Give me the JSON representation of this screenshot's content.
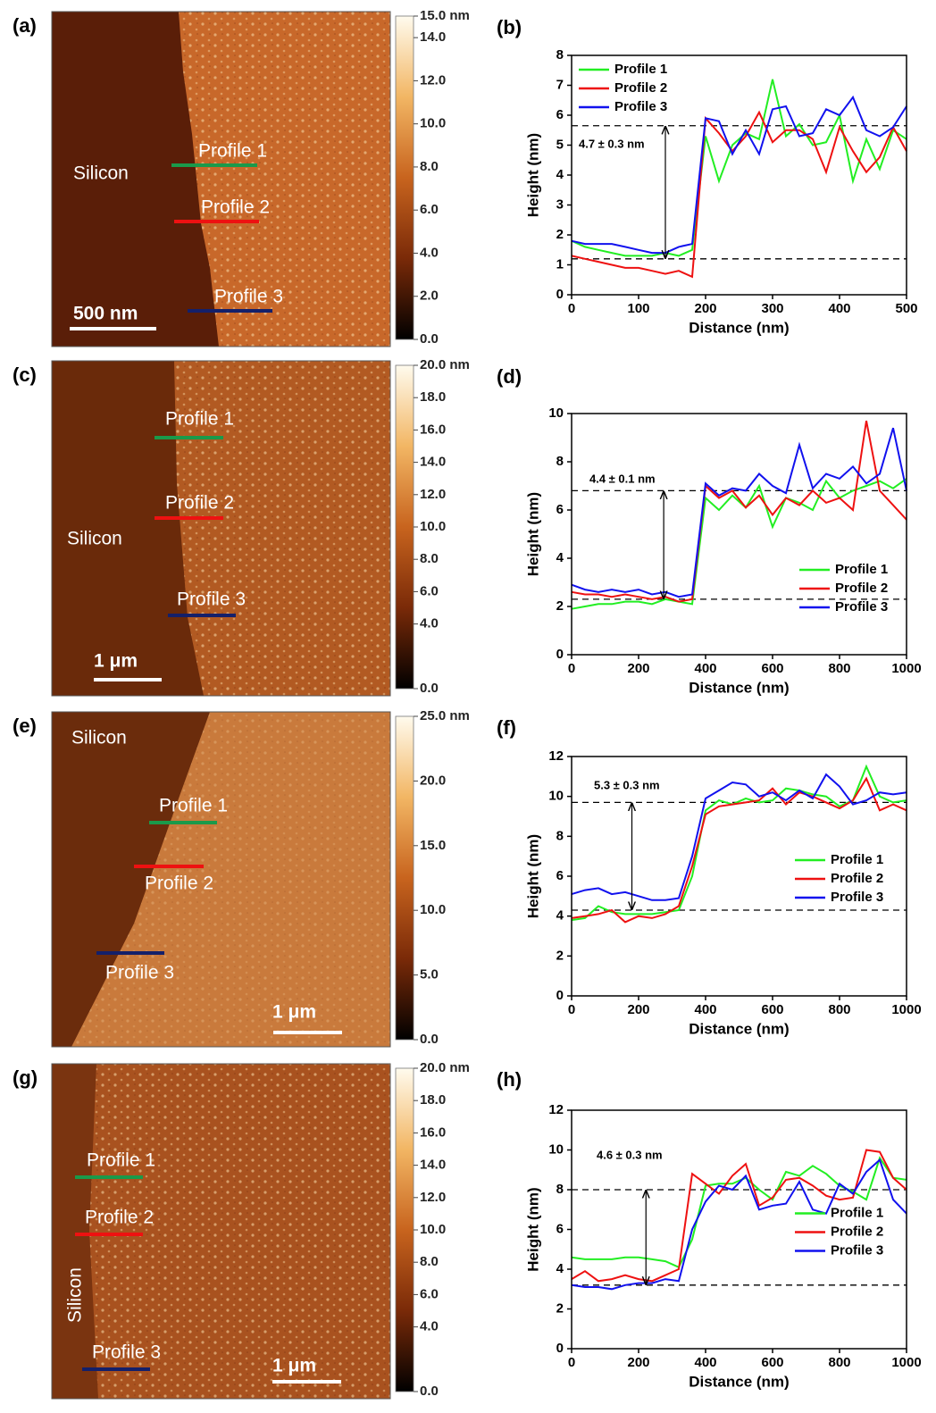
{
  "images": [
    {
      "label": "(a)",
      "silicon": "Silicon",
      "profiles": [
        "Profile 1",
        "Profile 2",
        "Profile 3"
      ],
      "scale_bar": "500 nm",
      "colorbar_lim": [
        0,
        15
      ],
      "colorbar_ticks": [
        {
          "value": 15,
          "label": "15.0 nm"
        },
        {
          "value": 14,
          "label": "14.0"
        },
        {
          "value": 12,
          "label": "12.0"
        },
        {
          "value": 10,
          "label": "10.0"
        },
        {
          "value": 8,
          "label": "8.0"
        },
        {
          "value": 6,
          "label": "6.0"
        },
        {
          "value": 4,
          "label": "4.0"
        },
        {
          "value": 2,
          "label": "2.0"
        },
        {
          "value": 0,
          "label": "0.0"
        }
      ]
    },
    {
      "label": "(c)",
      "silicon": "Silicon",
      "profiles": [
        "Profile 1",
        "Profile 2",
        "Profile 3"
      ],
      "scale_bar": "1 μm",
      "colorbar_lim": [
        0,
        20
      ],
      "colorbar_ticks": [
        {
          "value": 20,
          "label": "20.0 nm"
        },
        {
          "value": 18,
          "label": "18.0"
        },
        {
          "value": 16,
          "label": "16.0"
        },
        {
          "value": 14,
          "label": "14.0"
        },
        {
          "value": 12,
          "label": "12.0"
        },
        {
          "value": 10,
          "label": "10.0"
        },
        {
          "value": 8,
          "label": "8.0"
        },
        {
          "value": 6,
          "label": "6.0"
        },
        {
          "value": 4,
          "label": "4.0"
        },
        {
          "value": 0,
          "label": "0.0"
        }
      ]
    },
    {
      "label": "(e)",
      "silicon": "Silicon",
      "profiles": [
        "Profile 1",
        "Profile 2",
        "Profile 3"
      ],
      "scale_bar": "1 μm",
      "colorbar_lim": [
        0,
        25
      ],
      "colorbar_ticks": [
        {
          "value": 25,
          "label": "25.0 nm"
        },
        {
          "value": 20,
          "label": "20.0"
        },
        {
          "value": 15,
          "label": "15.0"
        },
        {
          "value": 10,
          "label": "10.0"
        },
        {
          "value": 5,
          "label": "5.0"
        },
        {
          "value": 0,
          "label": "0.0"
        }
      ]
    },
    {
      "label": "(g)",
      "silicon": "Silicon",
      "profiles": [
        "Profile 1",
        "Profile 2",
        "Profile 3"
      ],
      "scale_bar": "1 μm",
      "colorbar_lim": [
        0,
        20
      ],
      "colorbar_ticks": [
        {
          "value": 20,
          "label": "20.0 nm"
        },
        {
          "value": 18,
          "label": "18.0"
        },
        {
          "value": 16,
          "label": "16.0"
        },
        {
          "value": 14,
          "label": "14.0"
        },
        {
          "value": 12,
          "label": "12.0"
        },
        {
          "value": 10,
          "label": "10.0"
        },
        {
          "value": 8,
          "label": "8.0"
        },
        {
          "value": 6,
          "label": "6.0"
        },
        {
          "value": 4,
          "label": "4.0"
        },
        {
          "value": 0,
          "label": "0.0"
        }
      ]
    }
  ],
  "chart_data": [
    {
      "type": "line",
      "label": "(b)",
      "xlabel": "Distance (nm)",
      "ylabel": "Height (nm)",
      "annotation": "4.7 ± 0.3 nm",
      "xlim": [
        0,
        500
      ],
      "ylim": [
        0,
        8
      ],
      "xticks": [
        0,
        100,
        200,
        300,
        400,
        500
      ],
      "yticks": [
        0,
        1,
        2,
        3,
        4,
        5,
        6,
        7,
        8
      ],
      "reference_lines": [
        5.65,
        1.2
      ],
      "legend": "upper left",
      "x": [
        0,
        20,
        40,
        60,
        80,
        100,
        120,
        140,
        160,
        180,
        200,
        220,
        240,
        260,
        280,
        300,
        320,
        340,
        360,
        380,
        400,
        420,
        440,
        460,
        480,
        500
      ],
      "series": [
        {
          "name": "Profile 1",
          "color": "#22ee22",
          "values": [
            1.8,
            1.6,
            1.5,
            1.4,
            1.3,
            1.3,
            1.3,
            1.4,
            1.3,
            1.5,
            5.3,
            3.8,
            5.0,
            5.4,
            5.2,
            7.2,
            5.3,
            5.7,
            5.0,
            5.1,
            6.0,
            3.8,
            5.2,
            4.2,
            5.5,
            5.2
          ]
        },
        {
          "name": "Profile 2",
          "color": "#ee1111",
          "values": [
            1.3,
            1.2,
            1.1,
            1.0,
            0.9,
            0.9,
            0.8,
            0.7,
            0.8,
            0.6,
            5.9,
            5.4,
            4.8,
            5.3,
            6.1,
            5.1,
            5.5,
            5.5,
            5.2,
            4.1,
            5.6,
            4.8,
            4.1,
            4.6,
            5.6,
            4.8
          ]
        },
        {
          "name": "Profile 3",
          "color": "#1111ee",
          "values": [
            1.8,
            1.7,
            1.7,
            1.7,
            1.6,
            1.5,
            1.4,
            1.4,
            1.6,
            1.7,
            5.9,
            5.8,
            4.7,
            5.5,
            4.7,
            6.2,
            6.3,
            5.3,
            5.4,
            6.2,
            6.0,
            6.6,
            5.5,
            5.3,
            5.6,
            6.3
          ]
        }
      ]
    },
    {
      "type": "line",
      "label": "(d)",
      "xlabel": "Distance (nm)",
      "ylabel": "Height (nm)",
      "annotation": "4.4 ± 0.1 nm",
      "xlim": [
        0,
        1000
      ],
      "ylim": [
        0,
        10
      ],
      "xticks": [
        0,
        200,
        400,
        600,
        800,
        1000
      ],
      "yticks": [
        0,
        2,
        4,
        6,
        8,
        10
      ],
      "reference_lines": [
        6.8,
        2.3
      ],
      "legend": "lower right",
      "x": [
        0,
        40,
        80,
        120,
        160,
        200,
        240,
        280,
        320,
        360,
        400,
        440,
        480,
        520,
        560,
        600,
        640,
        680,
        720,
        760,
        800,
        840,
        880,
        920,
        960,
        1000
      ],
      "series": [
        {
          "name": "Profile 1",
          "color": "#22ee22",
          "values": [
            1.9,
            2.0,
            2.1,
            2.1,
            2.2,
            2.2,
            2.1,
            2.3,
            2.2,
            2.1,
            6.5,
            6.0,
            6.6,
            6.1,
            7.0,
            5.3,
            6.5,
            6.3,
            6.0,
            7.2,
            6.5,
            6.8,
            7.0,
            7.2,
            6.9,
            7.3
          ]
        },
        {
          "name": "Profile 2",
          "color": "#ee1111",
          "values": [
            2.6,
            2.5,
            2.5,
            2.4,
            2.5,
            2.4,
            2.3,
            2.4,
            2.2,
            2.3,
            7.0,
            6.5,
            6.8,
            6.1,
            6.6,
            5.8,
            6.5,
            6.2,
            6.8,
            6.3,
            6.5,
            6.0,
            9.7,
            6.8,
            6.2,
            5.6
          ]
        },
        {
          "name": "Profile 3",
          "color": "#1111ee",
          "values": [
            2.9,
            2.7,
            2.6,
            2.7,
            2.6,
            2.7,
            2.5,
            2.6,
            2.4,
            2.5,
            7.1,
            6.6,
            6.9,
            6.8,
            7.5,
            7.0,
            6.7,
            8.7,
            6.9,
            7.5,
            7.3,
            7.8,
            7.1,
            7.5,
            9.4,
            6.8
          ]
        }
      ]
    },
    {
      "type": "line",
      "label": "(f)",
      "xlabel": "Distance (nm)",
      "ylabel": "Height (nm)",
      "annotation": "5.3 ± 0.3 nm",
      "xlim": [
        0,
        1000
      ],
      "ylim": [
        0,
        12
      ],
      "xticks": [
        0,
        200,
        400,
        600,
        800,
        1000
      ],
      "yticks": [
        0,
        2,
        4,
        6,
        8,
        10,
        12
      ],
      "reference_lines": [
        9.7,
        4.3
      ],
      "legend": "center right",
      "x": [
        0,
        40,
        80,
        120,
        160,
        200,
        240,
        280,
        320,
        360,
        400,
        440,
        480,
        520,
        560,
        600,
        640,
        680,
        720,
        760,
        800,
        840,
        880,
        920,
        960,
        1000
      ],
      "series": [
        {
          "name": "Profile 1",
          "color": "#22ee22",
          "values": [
            3.8,
            3.9,
            4.5,
            4.2,
            4.1,
            4.1,
            4.1,
            4.2,
            4.3,
            6.0,
            9.3,
            9.8,
            9.6,
            9.9,
            9.7,
            9.8,
            10.4,
            10.3,
            10.1,
            10.0,
            9.5,
            9.8,
            11.5,
            10.0,
            9.7,
            9.8
          ]
        },
        {
          "name": "Profile 2",
          "color": "#ee1111",
          "values": [
            3.9,
            4.0,
            4.1,
            4.3,
            3.7,
            4.0,
            3.9,
            4.1,
            4.5,
            6.5,
            9.1,
            9.5,
            9.6,
            9.7,
            9.8,
            10.4,
            9.6,
            10.2,
            10.0,
            9.7,
            9.4,
            9.8,
            10.9,
            9.3,
            9.6,
            9.3
          ]
        },
        {
          "name": "Profile 3",
          "color": "#1111ee",
          "values": [
            5.1,
            5.3,
            5.4,
            5.1,
            5.2,
            5.0,
            4.8,
            4.8,
            4.9,
            7.0,
            9.9,
            10.3,
            10.7,
            10.6,
            10.0,
            10.2,
            9.8,
            10.3,
            9.9,
            11.1,
            10.5,
            9.6,
            9.8,
            10.2,
            10.1,
            10.2
          ]
        }
      ]
    },
    {
      "type": "line",
      "label": "(h)",
      "xlabel": "Distance (nm)",
      "ylabel": "Height (nm)",
      "annotation": "4.6 ± 0.3 nm",
      "xlim": [
        0,
        1000
      ],
      "ylim": [
        0,
        12
      ],
      "xticks": [
        0,
        200,
        400,
        600,
        800,
        1000
      ],
      "yticks": [
        0,
        2,
        4,
        6,
        8,
        10,
        12
      ],
      "reference_lines": [
        8.0,
        3.2
      ],
      "legend": "center right",
      "x": [
        0,
        40,
        80,
        120,
        160,
        200,
        240,
        280,
        320,
        360,
        400,
        440,
        480,
        520,
        560,
        600,
        640,
        680,
        720,
        760,
        800,
        840,
        880,
        920,
        960,
        1000
      ],
      "series": [
        {
          "name": "Profile 1",
          "color": "#22ee22",
          "values": [
            4.6,
            4.5,
            4.5,
            4.5,
            4.6,
            4.6,
            4.5,
            4.4,
            4.1,
            5.5,
            8.2,
            8.3,
            8.3,
            8.6,
            8.0,
            7.5,
            8.9,
            8.7,
            9.2,
            8.8,
            8.2,
            7.9,
            7.5,
            9.6,
            8.6,
            8.5
          ]
        },
        {
          "name": "Profile 2",
          "color": "#ee1111",
          "values": [
            3.5,
            3.9,
            3.4,
            3.5,
            3.7,
            3.5,
            3.4,
            3.7,
            4.0,
            8.8,
            8.3,
            7.8,
            8.7,
            9.3,
            7.2,
            7.6,
            8.5,
            8.6,
            8.2,
            7.7,
            7.5,
            7.6,
            10.0,
            9.9,
            8.6,
            8.0
          ]
        },
        {
          "name": "Profile 3",
          "color": "#1111ee",
          "values": [
            3.2,
            3.1,
            3.1,
            3.0,
            3.2,
            3.3,
            3.3,
            3.5,
            3.4,
            6.0,
            7.4,
            8.2,
            8.0,
            8.7,
            7.0,
            7.2,
            7.3,
            8.4,
            7.0,
            6.8,
            8.3,
            7.8,
            8.9,
            9.5,
            7.5,
            6.8
          ]
        }
      ]
    }
  ]
}
